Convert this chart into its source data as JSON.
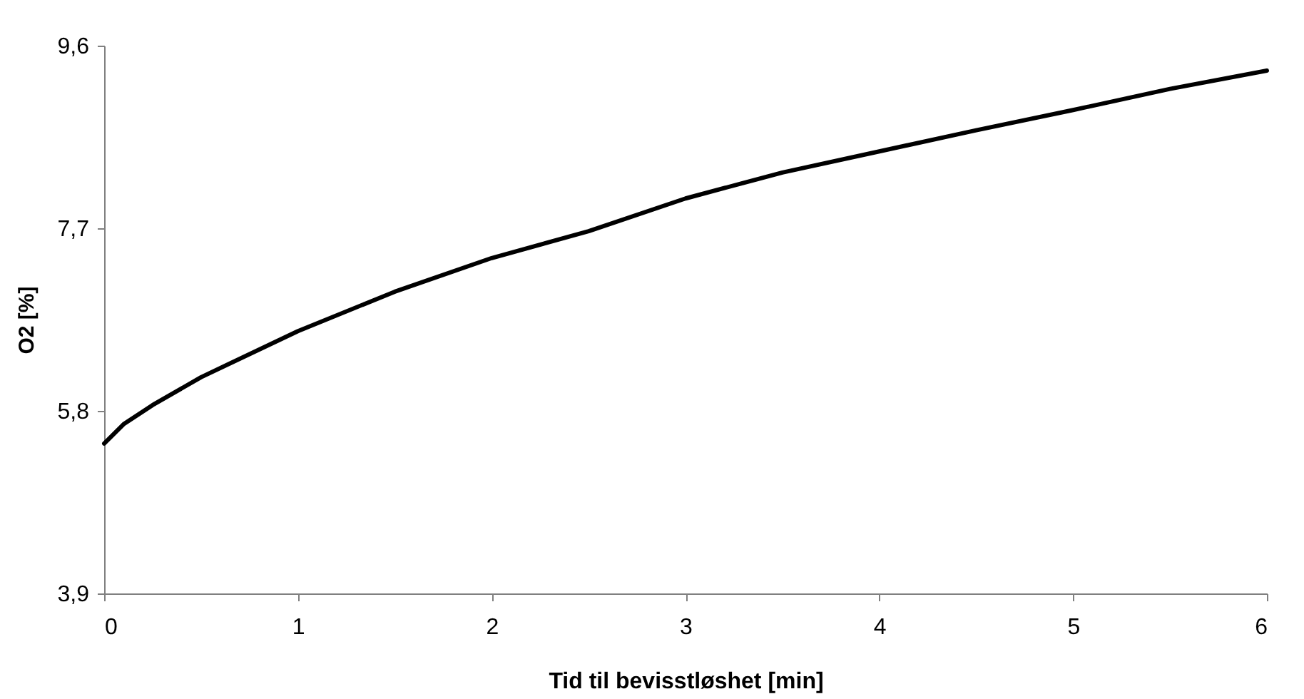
{
  "chart_data": {
    "type": "line",
    "xlabel": "Tid til bevisstløshet [min]",
    "ylabel": "O2 [%]",
    "x": [
      0,
      0.1,
      0.25,
      0.5,
      1,
      1.5,
      2,
      2.5,
      3,
      3.5,
      4,
      4.5,
      5,
      5.5,
      6
    ],
    "series": [
      {
        "color": "#000000",
        "values": [
          5.46,
          5.66,
          5.86,
          6.15,
          6.63,
          7.04,
          7.39,
          7.67,
          8.01,
          8.28,
          8.5,
          8.72,
          8.93,
          9.15,
          9.34
        ]
      }
    ],
    "xlim": [
      0,
      6
    ],
    "xticks": [
      0,
      1,
      2,
      3,
      4,
      5,
      6
    ],
    "ylim": [
      3.9,
      9.6
    ],
    "yticks": [
      {
        "value": 3.9,
        "label": "3,9"
      },
      {
        "value": 5.8,
        "label": "5,8"
      },
      {
        "value": 7.7,
        "label": "7,7"
      },
      {
        "value": 9.6,
        "label": "9,6"
      }
    ],
    "grid": false,
    "legend": false,
    "marker": "none",
    "line_style": "solid"
  }
}
